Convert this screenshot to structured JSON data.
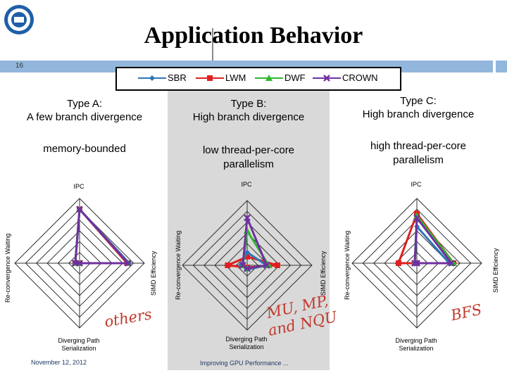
{
  "slide": {
    "title": "Application Behavior",
    "number": "16",
    "footer_date": "November 12, 2012",
    "footer_title": "Improving GPU Performance ..."
  },
  "legend": [
    {
      "name": "SBR",
      "color": "#2e75b6"
    },
    {
      "name": "LWM",
      "color": "#e0201c"
    },
    {
      "name": "DWF",
      "color": "#2eb82e"
    },
    {
      "name": "CROWN",
      "color": "#7030a0"
    }
  ],
  "columns": [
    {
      "type_line1": "Type A:",
      "type_line2": "A few branch divergence",
      "prop_line1": "memory-bounded",
      "prop_line2": ""
    },
    {
      "type_line1": "Type B:",
      "type_line2": "High branch divergence",
      "prop_line1": "low thread-per-core",
      "prop_line2": "parallelism"
    },
    {
      "type_line1": "Type C:",
      "type_line2": "High branch divergence",
      "prop_line1": "high thread-per-core",
      "prop_line2": "parallelism"
    }
  ],
  "axes": {
    "top": "IPC",
    "right": "SIMD Efficiency",
    "bottom_line1": "Diverging Path",
    "bottom_line2": "Serialization",
    "left": "Re-convergence Waiting"
  },
  "annotations": {
    "chart1": "others",
    "chart2_line1": "MU, MP,",
    "chart2_line2": "and NQU",
    "chart3": "BFS"
  },
  "chart_data": [
    {
      "type": "radar",
      "title": "Type A: A few branch divergence",
      "axes": [
        "IPC",
        "SIMD Efficiency",
        "Diverging Path Serialization",
        "Re-convergence Waiting"
      ],
      "rings": 6,
      "range": [
        0,
        6
      ],
      "series": [
        {
          "name": "SBR",
          "values": [
            5.0,
            4.6,
            0,
            0.4
          ]
        },
        {
          "name": "LWM",
          "values": [
            5.0,
            4.4,
            0,
            0.4
          ]
        },
        {
          "name": "DWF",
          "values": [
            5.0,
            4.5,
            0,
            0.4
          ]
        },
        {
          "name": "CROWN",
          "values": [
            5.0,
            4.5,
            0,
            0.4
          ]
        }
      ]
    },
    {
      "type": "radar",
      "title": "Type B: High branch divergence",
      "axes": [
        "IPC",
        "SIMD Efficiency",
        "Diverging Path Serialization",
        "Re-convergence Waiting"
      ],
      "rings": 6,
      "range": [
        0,
        6
      ],
      "series": [
        {
          "name": "SBR",
          "values": [
            1.2,
            1.8,
            0.4,
            0.6
          ]
        },
        {
          "name": "LWM",
          "values": [
            0.8,
            2.8,
            0.2,
            1.8
          ]
        },
        {
          "name": "DWF",
          "values": [
            3.2,
            2.0,
            0.3,
            0.4
          ]
        },
        {
          "name": "CROWN",
          "values": [
            4.4,
            1.8,
            0.3,
            0.4
          ]
        }
      ]
    },
    {
      "type": "radar",
      "title": "Type C: High branch divergence",
      "axes": [
        "IPC",
        "SIMD Efficiency",
        "Diverging Path Serialization",
        "Re-convergence Waiting"
      ],
      "rings": 6,
      "range": [
        0,
        6
      ],
      "series": [
        {
          "name": "SBR",
          "values": [
            3.4,
            3.0,
            0,
            0.2
          ]
        },
        {
          "name": "LWM",
          "values": [
            4.6,
            3.4,
            0,
            1.7
          ]
        },
        {
          "name": "DWF",
          "values": [
            4.4,
            3.4,
            0,
            0.2
          ]
        },
        {
          "name": "CROWN",
          "values": [
            4.2,
            3.2,
            0,
            0.2
          ]
        }
      ]
    }
  ]
}
